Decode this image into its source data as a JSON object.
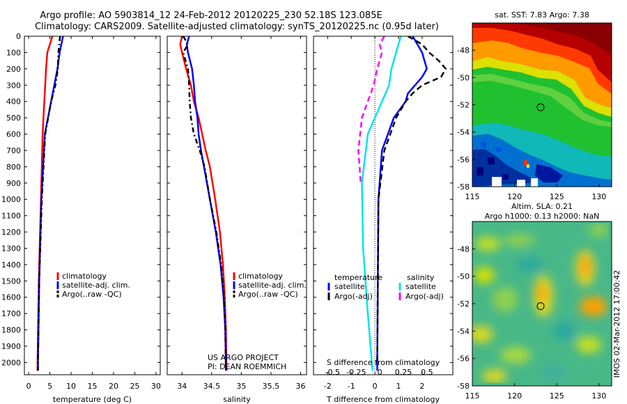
{
  "header": {
    "line1": "Argo profile: AO 5903814_12 24-Feb-2012 20120225_230 52.18S 123.085E",
    "line2": "Climatology: CARS2009. Satellite-adjusted climatology: synTS_20120225.nc (0.95d later)"
  },
  "chart_data": [
    {
      "id": "temperature",
      "type": "line",
      "xlabel": "temperature (deg C)",
      "ylabel": "",
      "xlim": [
        -1,
        31
      ],
      "ylim": [
        2075,
        0
      ],
      "xticks": [
        0,
        5,
        10,
        15,
        20,
        25,
        30
      ],
      "yticks": [
        0,
        100,
        200,
        300,
        400,
        500,
        600,
        700,
        800,
        900,
        1000,
        1100,
        1200,
        1300,
        1400,
        1500,
        1600,
        1700,
        1800,
        1900,
        2000
      ],
      "legend": [
        "climatology",
        "satellite-adj. clim.",
        "Argo(..raw -QC)"
      ],
      "series": [
        {
          "name": "climatology",
          "color": "#ff0000",
          "dash": "",
          "depth": [
            0,
            50,
            100,
            200,
            400,
            600,
            1000,
            1500,
            2000,
            2050
          ],
          "values": [
            5.6,
            5.0,
            4.4,
            4.1,
            3.7,
            3.3,
            2.9,
            2.4,
            2.1,
            2.1
          ]
        },
        {
          "name": "satellite-adj. clim.",
          "color": "#0000ff",
          "dash": "",
          "depth": [
            0,
            50,
            100,
            200,
            400,
            600,
            1000,
            1500,
            2000,
            2050
          ],
          "values": [
            8.1,
            7.7,
            7.3,
            6.8,
            5.3,
            3.8,
            3.0,
            2.5,
            2.2,
            2.2
          ]
        },
        {
          "name": "Argo(..raw -QC)",
          "color": "#000000",
          "dash": "7,4,2,4",
          "depth": [
            0,
            50,
            100,
            200,
            300,
            400,
            600,
            1000,
            1500,
            2000,
            2050
          ],
          "values": [
            7.4,
            7.2,
            7.0,
            6.9,
            6.3,
            5.3,
            3.9,
            3.1,
            2.5,
            2.2,
            2.2
          ]
        }
      ]
    },
    {
      "id": "salinity",
      "type": "line",
      "xlabel": "salinity",
      "ylabel": "",
      "xlim": [
        33.75,
        36.1
      ],
      "ylim": [
        2075,
        0
      ],
      "xticks": [
        34,
        34.5,
        35,
        35.5,
        36
      ],
      "xticklabels": [
        "34",
        "34.5",
        "35",
        "35.5",
        "36"
      ],
      "legend": [
        "climatology",
        "satellite-adj. clim.",
        "Argo(..raw -QC)"
      ],
      "annotation": [
        "US ARGO PROJECT",
        "PI: DEAN ROEMMICH"
      ],
      "series": [
        {
          "name": "climatology",
          "color": "#ff0000",
          "dash": "",
          "depth": [
            0,
            50,
            100,
            200,
            300,
            400,
            500,
            600,
            700,
            800,
            1000,
            1200,
            1400,
            1600,
            1800,
            2050
          ],
          "values": [
            34.0,
            33.97,
            34.0,
            34.07,
            34.15,
            34.2,
            34.28,
            34.34,
            34.4,
            34.47,
            34.56,
            34.64,
            34.69,
            34.72,
            34.74,
            34.75
          ]
        },
        {
          "name": "satellite-adj. clim.",
          "color": "#0000ff",
          "dash": "",
          "depth": [
            0,
            50,
            100,
            200,
            300,
            400,
            500,
            600,
            700,
            800,
            1000,
            1200,
            1400,
            1600,
            1800,
            2050
          ],
          "values": [
            34.12,
            34.08,
            34.1,
            34.17,
            34.2,
            34.22,
            34.26,
            34.28,
            34.32,
            34.37,
            34.47,
            34.57,
            34.65,
            34.7,
            34.73,
            34.74
          ]
        },
        {
          "name": "Argo(..raw -QC)",
          "color": "#000000",
          "dash": "7,4,2,4",
          "depth": [
            0,
            50,
            100,
            200,
            300,
            400,
            500,
            600,
            700,
            800,
            1000,
            1200,
            1400,
            1600,
            1800,
            2050
          ],
          "values": [
            34.02,
            34.1,
            34.02,
            34.1,
            34.12,
            34.13,
            34.15,
            34.2,
            34.3,
            34.38,
            34.47,
            34.58,
            34.66,
            34.71,
            34.73,
            34.74
          ]
        }
      ]
    },
    {
      "id": "difference",
      "type": "line",
      "xlabel": "T difference from climatology",
      "xlabel2": "S difference from climatology",
      "ylabel": "",
      "xlim": [
        -2.6,
        3.3
      ],
      "ylim": [
        2075,
        0
      ],
      "xticks": [
        -2,
        -1,
        0,
        1,
        2
      ],
      "xticklabels": [
        "-2",
        "-1",
        "0",
        "1",
        "2"
      ],
      "s_ticklabels": [
        "-0.5",
        "-0.25",
        "0",
        "0.25",
        "0.5"
      ],
      "legend_titles": [
        "temperature",
        "salinity"
      ],
      "legend_temperature": [
        "satellite",
        "Argo(-adj)"
      ],
      "legend_salinity": [
        "satellite",
        "Argo(-adj)"
      ],
      "series": [
        {
          "name": "T satellite",
          "color": "#0000ff",
          "dash": "",
          "depth": [
            0,
            50,
            100,
            150,
            200,
            250,
            300,
            350,
            400,
            500,
            700,
            1000,
            2000,
            2050
          ],
          "values": [
            1.6,
            1.8,
            2.0,
            2.1,
            2.2,
            2.0,
            1.7,
            1.4,
            1.3,
            0.8,
            0.3,
            0.15,
            0.1,
            0.1
          ]
        },
        {
          "name": "T Argo(-adj)",
          "color": "#000000",
          "dash": "8,5",
          "depth": [
            0,
            50,
            100,
            150,
            200,
            250,
            300,
            350,
            400,
            500,
            700,
            1000,
            2000
          ],
          "values": [
            1.4,
            2.0,
            2.3,
            2.7,
            3.0,
            2.8,
            2.0,
            1.6,
            1.3,
            0.9,
            0.4,
            0.15,
            0.1
          ]
        },
        {
          "name": "S satellite",
          "color": "#00e5e5",
          "dash": "",
          "depth": [
            0,
            50,
            100,
            200,
            300,
            400,
            600,
            900,
            1300,
            1700,
            2050
          ],
          "values": [
            1.1,
            1.0,
            0.9,
            0.7,
            0.6,
            0.3,
            -0.3,
            -0.55,
            -0.5,
            -0.3,
            -0.1
          ]
        },
        {
          "name": "S Argo(-adj)",
          "color": "#ff00ff",
          "dash": "8,5",
          "depth": [
            0,
            50,
            100,
            200,
            300,
            400,
            500,
            700,
            900
          ],
          "values": [
            0.4,
            0.2,
            0.3,
            0.1,
            -0.05,
            -0.3,
            -0.55,
            -0.7,
            -0.6
          ]
        }
      ]
    },
    {
      "id": "sst-map",
      "type": "heatmap",
      "title": "sat. SST: 7.83  Argo: 7.38",
      "xlim": [
        115,
        131.5
      ],
      "ylim": [
        -58,
        -46
      ],
      "xticks": [
        115,
        120,
        125,
        130
      ],
      "yticks": [
        -48,
        -50,
        -52,
        -54,
        -56,
        -58
      ],
      "marker": [
        123.085,
        -52.18
      ]
    },
    {
      "id": "sla-map",
      "type": "heatmap",
      "title": "Altim. SLA: 0.21",
      "subtitle": "Argo h1000: 0.13  h2000: NaN",
      "xlim": [
        115,
        131.5
      ],
      "ylim": [
        -58,
        -46
      ],
      "xticks": [
        115,
        120,
        125,
        130
      ],
      "yticks": [
        -48,
        -50,
        -52,
        -54,
        -56,
        -58
      ],
      "marker": [
        123.085,
        -52.18
      ]
    }
  ],
  "side_label": "IMOS 02-Mar-2012 17:00:42"
}
